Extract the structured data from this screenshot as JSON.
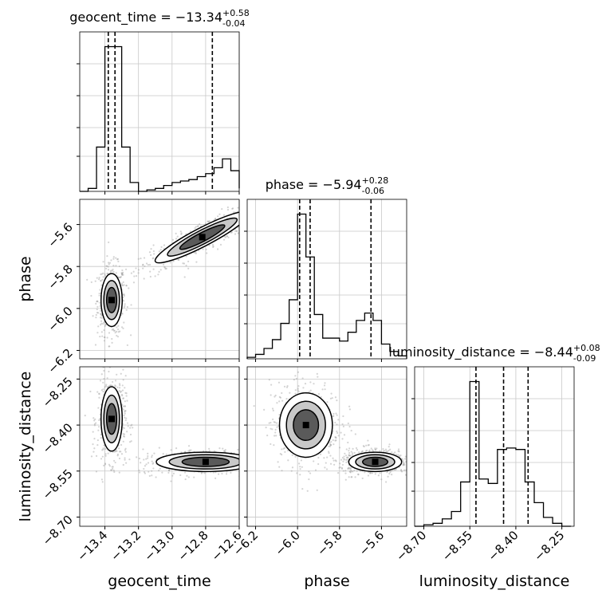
{
  "chart_data": {
    "type": "corner",
    "parameters": [
      {
        "name": "geocent_time",
        "median": "-13.34",
        "plus": "+0.58",
        "minus": "-0.04",
        "title_prefix": "geocent_time = −13.34",
        "range": [
          -13.55,
          -12.6
        ],
        "ticks": [
          -13.4,
          -13.2,
          -13.0,
          -12.8,
          -12.6
        ],
        "tick_labels": [
          "−13.4",
          "−13.2",
          "−13.0",
          "−12.8",
          "−12.6"
        ],
        "quantiles": [
          -13.38,
          -13.34,
          -12.76
        ],
        "histogram": {
          "edges": [
            -13.55,
            -13.5,
            -13.45,
            -13.4,
            -13.35,
            -13.3,
            -13.25,
            -13.2,
            -13.15,
            -13.1,
            -13.05,
            -13.0,
            -12.95,
            -12.9,
            -12.85,
            -12.8,
            -12.75,
            -12.7,
            -12.65,
            -12.6
          ],
          "counts": [
            0,
            0.02,
            0.3,
            0.98,
            0.98,
            0.3,
            0.06,
            0.0,
            0.01,
            0.02,
            0.04,
            0.06,
            0.07,
            0.08,
            0.1,
            0.12,
            0.16,
            0.22,
            0.14,
            0.02
          ]
        }
      },
      {
        "name": "phase",
        "median": "-5.94",
        "plus": "+0.28",
        "minus": "-0.06",
        "title_prefix": "phase = −5.94",
        "range": [
          -6.24,
          -5.48
        ],
        "ticks": [
          -6.2,
          -6.0,
          -5.8,
          -5.6
        ],
        "tick_labels": [
          "−6.2",
          "−6.0",
          "−5.8",
          "−5.6"
        ],
        "quantiles": [
          -5.99,
          -5.94,
          -5.65
        ],
        "histogram": {
          "edges": [
            -6.24,
            -6.2,
            -6.16,
            -6.12,
            -6.08,
            -6.04,
            -6.0,
            -5.96,
            -5.92,
            -5.88,
            -5.84,
            -5.8,
            -5.76,
            -5.72,
            -5.68,
            -5.64,
            -5.6,
            -5.56,
            -5.52,
            -5.48
          ],
          "counts": [
            0.01,
            0.03,
            0.07,
            0.13,
            0.24,
            0.4,
            0.98,
            0.69,
            0.3,
            0.14,
            0.14,
            0.12,
            0.18,
            0.26,
            0.31,
            0.26,
            0.1,
            0.05,
            0.02
          ]
        }
      },
      {
        "name": "luminosity_distance",
        "median": "-8.44",
        "plus": "+0.08",
        "minus": "-0.09",
        "title_prefix": "luminosity_distance = −8.44",
        "range": [
          -8.73,
          -8.21
        ],
        "ticks": [
          -8.7,
          -8.55,
          -8.4,
          -8.25
        ],
        "tick_labels": [
          "−8.70",
          "−8.55",
          "−8.40",
          "−8.25"
        ],
        "quantiles": [
          -8.53,
          -8.44,
          -8.36
        ],
        "histogram": {
          "edges": [
            -8.73,
            -8.7,
            -8.67,
            -8.64,
            -8.61,
            -8.58,
            -8.55,
            -8.52,
            -8.49,
            -8.46,
            -8.43,
            -8.4,
            -8.37,
            -8.34,
            -8.31,
            -8.28,
            -8.25,
            -8.22
          ],
          "counts": [
            0.0,
            0.01,
            0.02,
            0.05,
            0.1,
            0.3,
            0.98,
            0.32,
            0.29,
            0.52,
            0.53,
            0.52,
            0.3,
            0.16,
            0.06,
            0.02,
            0.0
          ]
        }
      }
    ],
    "joint": [
      {
        "x": "geocent_time",
        "y": "phase",
        "modes": [
          {
            "x": -13.36,
            "y": -5.96,
            "sx": 0.03,
            "sy": 0.06,
            "w": 0.5
          },
          {
            "x": -12.82,
            "y": -5.66,
            "sx": 0.13,
            "sy": 0.06,
            "rho": 0.9,
            "w": 0.5
          }
        ]
      },
      {
        "x": "geocent_time",
        "y": "luminosity_distance",
        "modes": [
          {
            "x": -13.36,
            "y": -8.38,
            "sx": 0.03,
            "sy": 0.05,
            "w": 0.5
          },
          {
            "x": -12.8,
            "y": -8.52,
            "sx": 0.14,
            "sy": 0.015,
            "w": 0.5
          }
        ]
      },
      {
        "x": "phase",
        "y": "luminosity_distance",
        "modes": [
          {
            "x": -5.96,
            "y": -8.4,
            "sx": 0.06,
            "sy": 0.05,
            "w": 0.5
          },
          {
            "x": -5.63,
            "y": -8.52,
            "sx": 0.06,
            "sy": 0.015,
            "w": 0.5
          }
        ]
      }
    ],
    "grid": true,
    "colors": {
      "line": "#000000",
      "points": "#a0a0a0",
      "grid": "#c8c8c8"
    }
  }
}
